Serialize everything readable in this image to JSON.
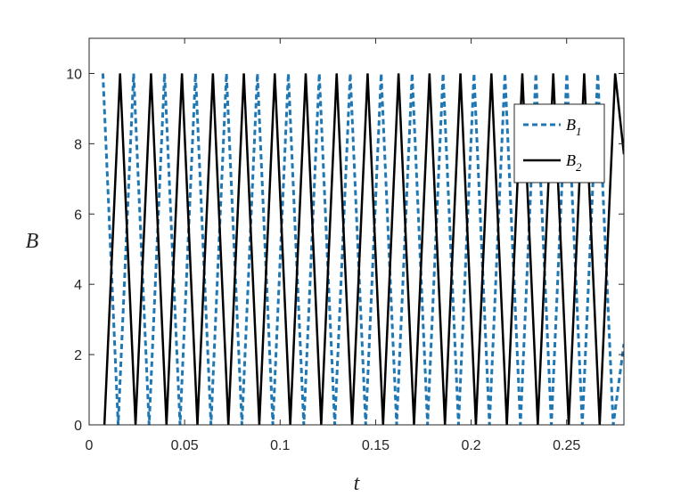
{
  "chart_data": {
    "type": "line",
    "xlabel": "t",
    "ylabel": "B",
    "xlim": [
      0,
      0.28
    ],
    "ylim": [
      0,
      11
    ],
    "xticks": [
      0,
      0.05,
      0.1,
      0.15,
      0.2,
      0.25
    ],
    "xtick_labels": [
      "0",
      "0.05",
      "0.1",
      "0.15",
      "0.2",
      "0.25"
    ],
    "yticks": [
      0,
      2,
      4,
      6,
      8,
      10
    ],
    "ytick_labels": [
      "0",
      "2",
      "4",
      "6",
      "8",
      "10"
    ],
    "grid": false,
    "legend_position": "top-right",
    "series": [
      {
        "name": "B",
        "subscript": "1",
        "style": "dashed",
        "color": "#1f77b4",
        "x": [
          0.0072,
          0.0152,
          0.0233,
          0.0314,
          0.0395,
          0.0476,
          0.0557,
          0.0638,
          0.0719,
          0.08,
          0.0881,
          0.0962,
          0.1043,
          0.1124,
          0.1205,
          0.1286,
          0.1367,
          0.1448,
          0.1529,
          0.161,
          0.1691,
          0.1772,
          0.1853,
          0.1934,
          0.2015,
          0.2096,
          0.2177,
          0.2258,
          0.2339,
          0.242,
          0.2501,
          0.2582,
          0.2663,
          0.2744,
          0.28
        ],
        "y": [
          10,
          0,
          10,
          0,
          10,
          0,
          10,
          0,
          10,
          0,
          10,
          0,
          10,
          0,
          10,
          0,
          10,
          0,
          10,
          0,
          10,
          0,
          10,
          0,
          10,
          0,
          10,
          0,
          10,
          0,
          10,
          0,
          10,
          0,
          2.3
        ]
      },
      {
        "name": "B",
        "subscript": "2",
        "style": "solid",
        "color": "#000000",
        "x": [
          0.008,
          0.0162,
          0.0243,
          0.0324,
          0.0405,
          0.0486,
          0.0567,
          0.0648,
          0.0729,
          0.081,
          0.0891,
          0.0972,
          0.1053,
          0.1134,
          0.1215,
          0.1296,
          0.1377,
          0.1458,
          0.1539,
          0.162,
          0.1701,
          0.1782,
          0.1863,
          0.1944,
          0.2025,
          0.2106,
          0.2187,
          0.2268,
          0.2349,
          0.243,
          0.2511,
          0.2592,
          0.2673,
          0.2754,
          0.28
        ],
        "y": [
          0,
          10,
          0,
          10,
          0,
          10,
          0,
          10,
          0,
          10,
          0,
          10,
          0,
          10,
          0,
          10,
          0,
          10,
          0,
          10,
          0,
          10,
          0,
          10,
          0,
          10,
          0,
          10,
          0,
          10,
          0,
          10,
          0,
          10,
          7.7
        ]
      }
    ]
  }
}
